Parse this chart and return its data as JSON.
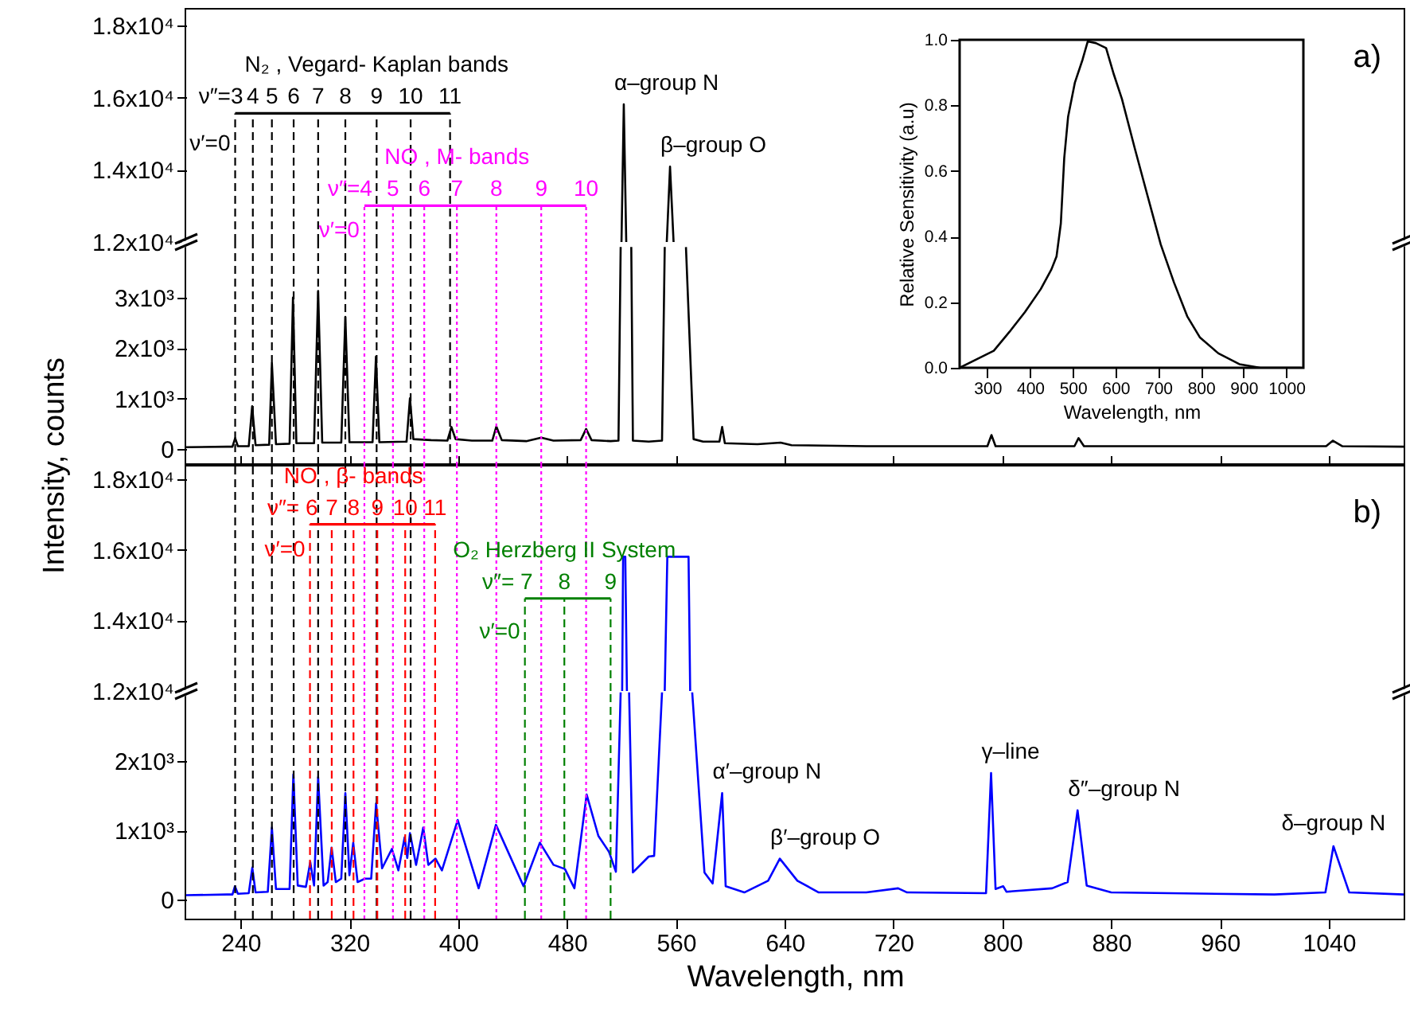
{
  "chart_data": [
    {
      "type": "line",
      "series": [
        {
          "color": "#000000",
          "x": [
            520,
            521.7,
            523.5
          ],
          "values": [
            12000,
            15820,
            12000
          ]
        },
        {
          "color": "#000000",
          "x": [
            553.3,
            555.7,
            558.3
          ],
          "values": [
            12000,
            14090,
            12000
          ]
        }
      ],
      "xlim": [
        200,
        1095
      ],
      "ylim": [
        12000,
        18450
      ],
      "yticks": [
        {
          "value": 12000,
          "label": "1.2x10⁴"
        },
        {
          "value": 14000,
          "label": "1.4x10⁴"
        },
        {
          "value": 16000,
          "label": "1.6x10⁴"
        },
        {
          "value": 18000,
          "label": "1.8x10⁴"
        }
      ],
      "tick_labels": "y",
      "ref_lines": [
        {
          "axis": "x",
          "value": 236,
          "color": "#000000",
          "line_style": "dashed"
        },
        {
          "axis": "x",
          "value": 249,
          "color": "#000000",
          "line_style": "dashed"
        },
        {
          "axis": "x",
          "value": 263,
          "color": "#000000",
          "line_style": "dashed"
        },
        {
          "axis": "x",
          "value": 279,
          "color": "#000000",
          "line_style": "dashed"
        },
        {
          "axis": "x",
          "value": 297,
          "color": "#000000",
          "line_style": "dashed"
        },
        {
          "axis": "x",
          "value": 317,
          "color": "#000000",
          "line_style": "dashed"
        },
        {
          "axis": "x",
          "value": 340,
          "color": "#000000",
          "line_style": "dashed",
          "label": "N₂ , Vegard- Kaplan bands"
        },
        {
          "axis": "x",
          "value": 365,
          "color": "#000000",
          "line_style": "dashed"
        },
        {
          "axis": "x",
          "value": 394,
          "color": "#000000",
          "line_style": "dashed"
        },
        {
          "axis": "x",
          "value": 331,
          "color": "#ff00ff",
          "line_style": "dotted"
        },
        {
          "axis": "x",
          "value": 352,
          "color": "#ff00ff",
          "line_style": "dotted"
        },
        {
          "axis": "x",
          "value": 375,
          "color": "#ff00ff",
          "line_style": "dotted"
        },
        {
          "axis": "x",
          "value": 399,
          "color": "#ff00ff",
          "line_style": "dotted",
          "label": "NO , M- bands"
        },
        {
          "axis": "x",
          "value": 428,
          "color": "#ff00ff",
          "line_style": "dotted"
        },
        {
          "axis": "x",
          "value": 461,
          "color": "#ff00ff",
          "line_style": "dotted"
        },
        {
          "axis": "x",
          "value": 494,
          "color": "#ff00ff",
          "line_style": "dotted"
        }
      ],
      "annotations": [
        {
          "text": "ν″=3",
          "x": 236,
          "y": 15570
        },
        {
          "text": "4",
          "x": 249,
          "y": 15570
        },
        {
          "text": "5",
          "x": 263,
          "y": 15570
        },
        {
          "text": "6",
          "x": 279,
          "y": 15570
        },
        {
          "text": "7",
          "x": 297,
          "y": 15570
        },
        {
          "text": "8",
          "x": 317,
          "y": 15570
        },
        {
          "text": "9",
          "x": 340,
          "y": 15570
        },
        {
          "text": "10",
          "x": 365,
          "y": 15570
        },
        {
          "text": "11",
          "x": 394,
          "y": 15570
        },
        {
          "text": "ν′=0",
          "x": 236,
          "y": 14710
        },
        {
          "text": "ν″=4",
          "x": 331,
          "y": 13010
        },
        {
          "text": "5",
          "x": 352,
          "y": 13010
        },
        {
          "text": "6",
          "x": 375,
          "y": 13010
        },
        {
          "text": "7",
          "x": 399,
          "y": 13010
        },
        {
          "text": "8",
          "x": 428,
          "y": 13010
        },
        {
          "text": "9",
          "x": 461,
          "y": 13010
        },
        {
          "text": "10",
          "x": 494,
          "y": 13010
        },
        {
          "text": "ν′=0",
          "x": 331,
          "y": 12300
        },
        {
          "text": "α–group N",
          "x": 521.7,
          "y": 15820
        },
        {
          "text": "β–group O",
          "x": 555.7,
          "y": 14090
        },
        "a)"
      ]
    },
    {
      "type": "line",
      "series": [
        {
          "color": "#000000",
          "x": [
            200,
            230,
            234,
            236,
            238,
            246,
            248.5,
            251,
            261,
            263,
            266,
            276,
            278.5,
            281,
            294,
            297,
            300,
            314,
            317,
            320,
            337,
            339.5,
            342,
            362,
            364.5,
            367,
            380,
            392,
            395,
            398,
            410,
            425,
            428,
            432,
            450,
            461,
            470,
            490,
            494,
            498,
            512,
            517.8,
            519.4,
            523,
            527.2,
            528.4,
            540,
            549.8,
            551.8,
            560,
            567.4,
            573,
            580,
            592,
            594,
            596,
            620,
            637,
            645,
            700,
            789,
            792,
            795,
            853,
            856,
            860,
            1038,
            1043,
            1050,
            1095
          ],
          "values": [
            40,
            50,
            50,
            220,
            60,
            60,
            850,
            80,
            90,
            1700,
            100,
            110,
            3000,
            120,
            120,
            3130,
            130,
            130,
            2620,
            140,
            140,
            1830,
            140,
            150,
            1010,
            200,
            180,
            170,
            440,
            200,
            170,
            170,
            450,
            180,
            160,
            230,
            170,
            180,
            400,
            180,
            160,
            170,
            4000,
            null,
            4000,
            170,
            150,
            170,
            4000,
            null,
            4000,
            200,
            150,
            150,
            440,
            120,
            100,
            130,
            80,
            60,
            60,
            280,
            60,
            60,
            220,
            60,
            60,
            170,
            60,
            50
          ]
        }
      ],
      "xlim": [
        200,
        1095
      ],
      "xticks": [
        240,
        320,
        400,
        480,
        560,
        640,
        720,
        800,
        880,
        960,
        1040
      ],
      "ylim": [
        -310,
        4100
      ],
      "yticks": [
        0,
        {
          "value": 1000,
          "label": "1x10³"
        },
        {
          "value": 2000,
          "label": "2x10³"
        },
        {
          "value": 3000,
          "label": "3x10³"
        }
      ],
      "tick_labels": "y",
      "ref_lines": [
        {
          "axis": "x",
          "value": 236,
          "color": "#000000",
          "line_style": "dashed"
        },
        {
          "axis": "x",
          "value": 249,
          "color": "#000000",
          "line_style": "dashed"
        },
        {
          "axis": "x",
          "value": 263,
          "color": "#000000",
          "line_style": "dashed"
        },
        {
          "axis": "x",
          "value": 279,
          "color": "#000000",
          "line_style": "dashed"
        },
        {
          "axis": "x",
          "value": 297,
          "color": "#000000",
          "line_style": "dashed"
        },
        {
          "axis": "x",
          "value": 317,
          "color": "#000000",
          "line_style": "dashed"
        },
        {
          "axis": "x",
          "value": 340,
          "color": "#000000",
          "line_style": "dashed"
        },
        {
          "axis": "x",
          "value": 365,
          "color": "#000000",
          "line_style": "dashed"
        },
        {
          "axis": "x",
          "value": 394,
          "color": "#000000",
          "line_style": "dashed"
        },
        {
          "axis": "x",
          "value": 331,
          "color": "#ff00ff",
          "line_style": "dotted"
        },
        {
          "axis": "x",
          "value": 352,
          "color": "#ff00ff",
          "line_style": "dotted"
        },
        {
          "axis": "x",
          "value": 375,
          "color": "#ff00ff",
          "line_style": "dotted"
        },
        {
          "axis": "x",
          "value": 399,
          "color": "#ff00ff",
          "line_style": "dotted"
        },
        {
          "axis": "x",
          "value": 428,
          "color": "#ff00ff",
          "line_style": "dotted"
        },
        {
          "axis": "x",
          "value": 461,
          "color": "#ff00ff",
          "line_style": "dotted"
        },
        {
          "axis": "x",
          "value": 494,
          "color": "#ff00ff",
          "line_style": "dotted"
        }
      ]
    },
    {
      "type": "line",
      "series": [
        {
          "color": "#000000",
          "x": [
            235,
            315,
            352,
            388,
            425,
            450,
            462,
            472,
            480,
            489,
            505,
            523,
            535,
            554,
            578,
            596,
            615,
            645,
            676,
            706,
            737,
            768,
            798,
            841,
            890,
            939,
            1034
          ],
          "values": [
            0,
            0.052,
            0.11,
            0.17,
            0.24,
            0.3,
            0.34,
            0.44,
            0.64,
            0.765,
            0.87,
            0.94,
            0.995,
            0.99,
            0.975,
            0.895,
            0.82,
            0.67,
            0.52,
            0.376,
            0.26,
            0.157,
            0.092,
            0.044,
            0.011,
            0,
            0
          ]
        }
      ],
      "xlim": [
        235,
        1040
      ],
      "xticks": [
        300,
        400,
        500,
        600,
        700,
        800,
        900,
        1000
      ],
      "ylim": [
        0,
        1
      ],
      "yticks": [
        {
          "value": 0,
          "label": "0.0"
        },
        {
          "value": 0.2,
          "label": "0.2"
        },
        {
          "value": 0.4,
          "label": "0.4"
        },
        {
          "value": 0.6,
          "label": "0.6"
        },
        {
          "value": 0.8,
          "label": "0.8"
        },
        {
          "value": 1,
          "label": "1.0"
        }
      ],
      "xlabel": "Wavelength, nm",
      "ylabel": "Relative Sensitivity (a.u)"
    },
    {
      "type": "line",
      "series": [
        {
          "color": "#0000ff",
          "x": [
            520.5,
            521.2,
            522.8,
            524
          ],
          "values": [
            12000,
            15800,
            15800,
            12000
          ]
        },
        {
          "color": "#0000ff",
          "x": [
            551.8,
            553.7,
            569.3,
            570.5
          ],
          "values": [
            12000,
            15800,
            15800,
            12000
          ]
        }
      ],
      "xlim": [
        200,
        1095
      ],
      "ylim": [
        12000,
        18400
      ],
      "yticks": [
        {
          "value": 12000,
          "label": "1.2x10⁴"
        },
        {
          "value": 14000,
          "label": "1.4x10⁴"
        },
        {
          "value": 16000,
          "label": "1.6x10⁴"
        },
        {
          "value": 18000,
          "label": "1.8x10⁴"
        }
      ],
      "tick_labels": "y",
      "ylabel": "Intensity, counts",
      "ref_lines": [
        {
          "axis": "x",
          "value": 236,
          "color": "#000000",
          "line_style": "dashed"
        },
        {
          "axis": "x",
          "value": 249,
          "color": "#000000",
          "line_style": "dashed"
        },
        {
          "axis": "x",
          "value": 263,
          "color": "#000000",
          "line_style": "dashed"
        },
        {
          "axis": "x",
          "value": 279,
          "color": "#000000",
          "line_style": "dashed"
        },
        {
          "axis": "x",
          "value": 297,
          "color": "#000000",
          "line_style": "dashed"
        },
        {
          "axis": "x",
          "value": 317,
          "color": "#000000",
          "line_style": "dashed"
        },
        {
          "axis": "x",
          "value": 340,
          "color": "#000000",
          "line_style": "dashed"
        },
        {
          "axis": "x",
          "value": 365,
          "color": "#000000",
          "line_style": "dashed"
        },
        {
          "axis": "x",
          "value": 331,
          "color": "#ff00ff",
          "line_style": "dotted"
        },
        {
          "axis": "x",
          "value": 352,
          "color": "#ff00ff",
          "line_style": "dotted"
        },
        {
          "axis": "x",
          "value": 375,
          "color": "#ff00ff",
          "line_style": "dotted"
        },
        {
          "axis": "x",
          "value": 399,
          "color": "#ff00ff",
          "line_style": "dotted"
        },
        {
          "axis": "x",
          "value": 428,
          "color": "#ff00ff",
          "line_style": "dotted"
        },
        {
          "axis": "x",
          "value": 461,
          "color": "#ff00ff",
          "line_style": "dotted"
        },
        {
          "axis": "x",
          "value": 494,
          "color": "#ff00ff",
          "line_style": "dotted"
        },
        {
          "axis": "x",
          "value": 291,
          "color": "#ff0000",
          "line_style": "dashed"
        },
        {
          "axis": "x",
          "value": 307,
          "color": "#ff0000",
          "line_style": "dashed"
        },
        {
          "axis": "x",
          "value": 323,
          "color": "#ff0000",
          "line_style": "dashed",
          "label": "NO , β- bands"
        },
        {
          "axis": "x",
          "value": 340.5,
          "color": "#ff0000",
          "line_style": "dashed"
        },
        {
          "axis": "x",
          "value": 361,
          "color": "#ff0000",
          "line_style": "dashed"
        },
        {
          "axis": "x",
          "value": 383,
          "color": "#ff0000",
          "line_style": "dashed"
        },
        {
          "axis": "x",
          "value": 449,
          "color": "#008000",
          "line_style": "dashed"
        },
        {
          "axis": "x",
          "value": 478,
          "color": "#008000",
          "line_style": "dashed",
          "label": "O₂ Herzberg II System"
        },
        {
          "axis": "x",
          "value": 512,
          "color": "#008000",
          "line_style": "dashed"
        }
      ],
      "annotations": [
        {
          "text": "ν″= 6",
          "x": 291,
          "y": 16720
        },
        {
          "text": "7",
          "x": 307,
          "y": 16720
        },
        {
          "text": "8",
          "x": 323,
          "y": 16720
        },
        {
          "text": "9",
          "x": 340.5,
          "y": 16720
        },
        {
          "text": "10",
          "x": 361,
          "y": 16720
        },
        {
          "text": "11",
          "x": 383,
          "y": 16720
        },
        {
          "text": "ν′=0",
          "x": 291,
          "y": 16000
        },
        {
          "text": "ν″= 7",
          "x": 449,
          "y": 14620
        },
        {
          "text": "8",
          "x": 478,
          "y": 14620
        },
        {
          "text": "9",
          "x": 512,
          "y": 14620
        },
        {
          "text": "ν′=0",
          "x": 449,
          "y": 13660
        },
        "b)"
      ]
    },
    {
      "type": "line",
      "series": [
        {
          "color": "#0000ff",
          "x": [
            200,
            230,
            234,
            235.8,
            238,
            246,
            248.6,
            251,
            260,
            263,
            266,
            276,
            278.8,
            282,
            288,
            291.2,
            294,
            297,
            301,
            304,
            306.9,
            310,
            314,
            317,
            320,
            322.8,
            326,
            331.4,
            336,
            339.6,
            344,
            351.2,
            356,
            360.6,
            362.5,
            364.5,
            369,
            374.3,
            378,
            383.3,
            388,
            399.6,
            415,
            427.7,
            448,
            460,
            470,
            478.4,
            485.4,
            494.4,
            503,
            510.8,
            515.9,
            519.4,
            522,
            525.6,
            528.4,
            540,
            544,
            549.8,
            560,
            572,
            581,
            587,
            594,
            596.6,
            610.3,
            627.8,
            636.4,
            649.3,
            665,
            700,
            723.4,
            730,
            788,
            791.7,
            795,
            800.6,
            803,
            836.6,
            848,
            855.3,
            862,
            880,
            1000,
            1037.5,
            1043.4,
            1047,
            1055,
            1095
          ],
          "values": [
            60,
            70,
            70,
            190,
            80,
            90,
            460,
            100,
            110,
            1040,
            150,
            150,
            1810,
            200,
            180,
            540,
            200,
            1770,
            200,
            250,
            750,
            250,
            300,
            1540,
            350,
            820,
            250,
            300,
            300,
            1390,
            450,
            730,
            420,
            900,
            600,
            960,
            500,
            1040,
            500,
            590,
            420,
            1150,
            160,
            1080,
            190,
            820,
            500,
            440,
            160,
            1520,
            920,
            690,
            400,
            3000,
            null,
            3000,
            390,
            620,
            630,
            3000,
            null,
            3000,
            390,
            230,
            1540,
            190,
            100,
            270,
            590,
            270,
            100,
            100,
            160,
            100,
            90,
            1830,
            150,
            190,
            110,
            160,
            250,
            1290,
            200,
            100,
            70,
            100,
            770,
            560,
            100,
            70
          ]
        }
      ],
      "xlim": [
        200,
        1095
      ],
      "xticks": [
        240,
        320,
        400,
        480,
        560,
        640,
        720,
        800,
        880,
        960,
        1040
      ],
      "ylim": [
        -280,
        3020
      ],
      "yticks": [
        0,
        {
          "value": 1000,
          "label": "1x10³"
        },
        {
          "value": 2000,
          "label": "2x10³"
        }
      ],
      "xlabel": "Wavelength, nm",
      "ref_lines": [
        {
          "axis": "x",
          "value": 236,
          "color": "#000000",
          "line_style": "dashed"
        },
        {
          "axis": "x",
          "value": 249,
          "color": "#000000",
          "line_style": "dashed"
        },
        {
          "axis": "x",
          "value": 263,
          "color": "#000000",
          "line_style": "dashed"
        },
        {
          "axis": "x",
          "value": 279,
          "color": "#000000",
          "line_style": "dashed"
        },
        {
          "axis": "x",
          "value": 297,
          "color": "#000000",
          "line_style": "dashed"
        },
        {
          "axis": "x",
          "value": 317,
          "color": "#000000",
          "line_style": "dashed"
        },
        {
          "axis": "x",
          "value": 340,
          "color": "#000000",
          "line_style": "dashed"
        },
        {
          "axis": "x",
          "value": 365,
          "color": "#000000",
          "line_style": "dashed"
        },
        {
          "axis": "x",
          "value": 331,
          "color": "#ff00ff",
          "line_style": "dotted"
        },
        {
          "axis": "x",
          "value": 352,
          "color": "#ff00ff",
          "line_style": "dotted"
        },
        {
          "axis": "x",
          "value": 375,
          "color": "#ff00ff",
          "line_style": "dotted"
        },
        {
          "axis": "x",
          "value": 399,
          "color": "#ff00ff",
          "line_style": "dotted"
        },
        {
          "axis": "x",
          "value": 428,
          "color": "#ff00ff",
          "line_style": "dotted"
        },
        {
          "axis": "x",
          "value": 461,
          "color": "#ff00ff",
          "line_style": "dotted"
        },
        {
          "axis": "x",
          "value": 494,
          "color": "#ff00ff",
          "line_style": "dotted"
        },
        {
          "axis": "x",
          "value": 291,
          "color": "#ff0000",
          "line_style": "dashed"
        },
        {
          "axis": "x",
          "value": 307,
          "color": "#ff0000",
          "line_style": "dashed"
        },
        {
          "axis": "x",
          "value": 323,
          "color": "#ff0000",
          "line_style": "dashed"
        },
        {
          "axis": "x",
          "value": 340.5,
          "color": "#ff0000",
          "line_style": "dashed"
        },
        {
          "axis": "x",
          "value": 361,
          "color": "#ff0000",
          "line_style": "dashed"
        },
        {
          "axis": "x",
          "value": 383,
          "color": "#ff0000",
          "line_style": "dashed"
        },
        {
          "axis": "x",
          "value": 449,
          "color": "#008000",
          "line_style": "dashed"
        },
        {
          "axis": "x",
          "value": 478,
          "color": "#008000",
          "line_style": "dashed"
        },
        {
          "axis": "x",
          "value": 512,
          "color": "#008000",
          "line_style": "dashed"
        }
      ],
      "annotations": [
        {
          "text": "α′–group N",
          "x": 594,
          "y": 1540
        },
        {
          "text": "β′–group O",
          "x": 636.4,
          "y": 590
        },
        {
          "text": "γ–line",
          "x": 791.7,
          "y": 1830
        },
        {
          "text": "δ″–group N",
          "x": 855.3,
          "y": 1290
        },
        {
          "text": "δ–group N",
          "x": 1043.4,
          "y": 770
        }
      ]
    }
  ]
}
